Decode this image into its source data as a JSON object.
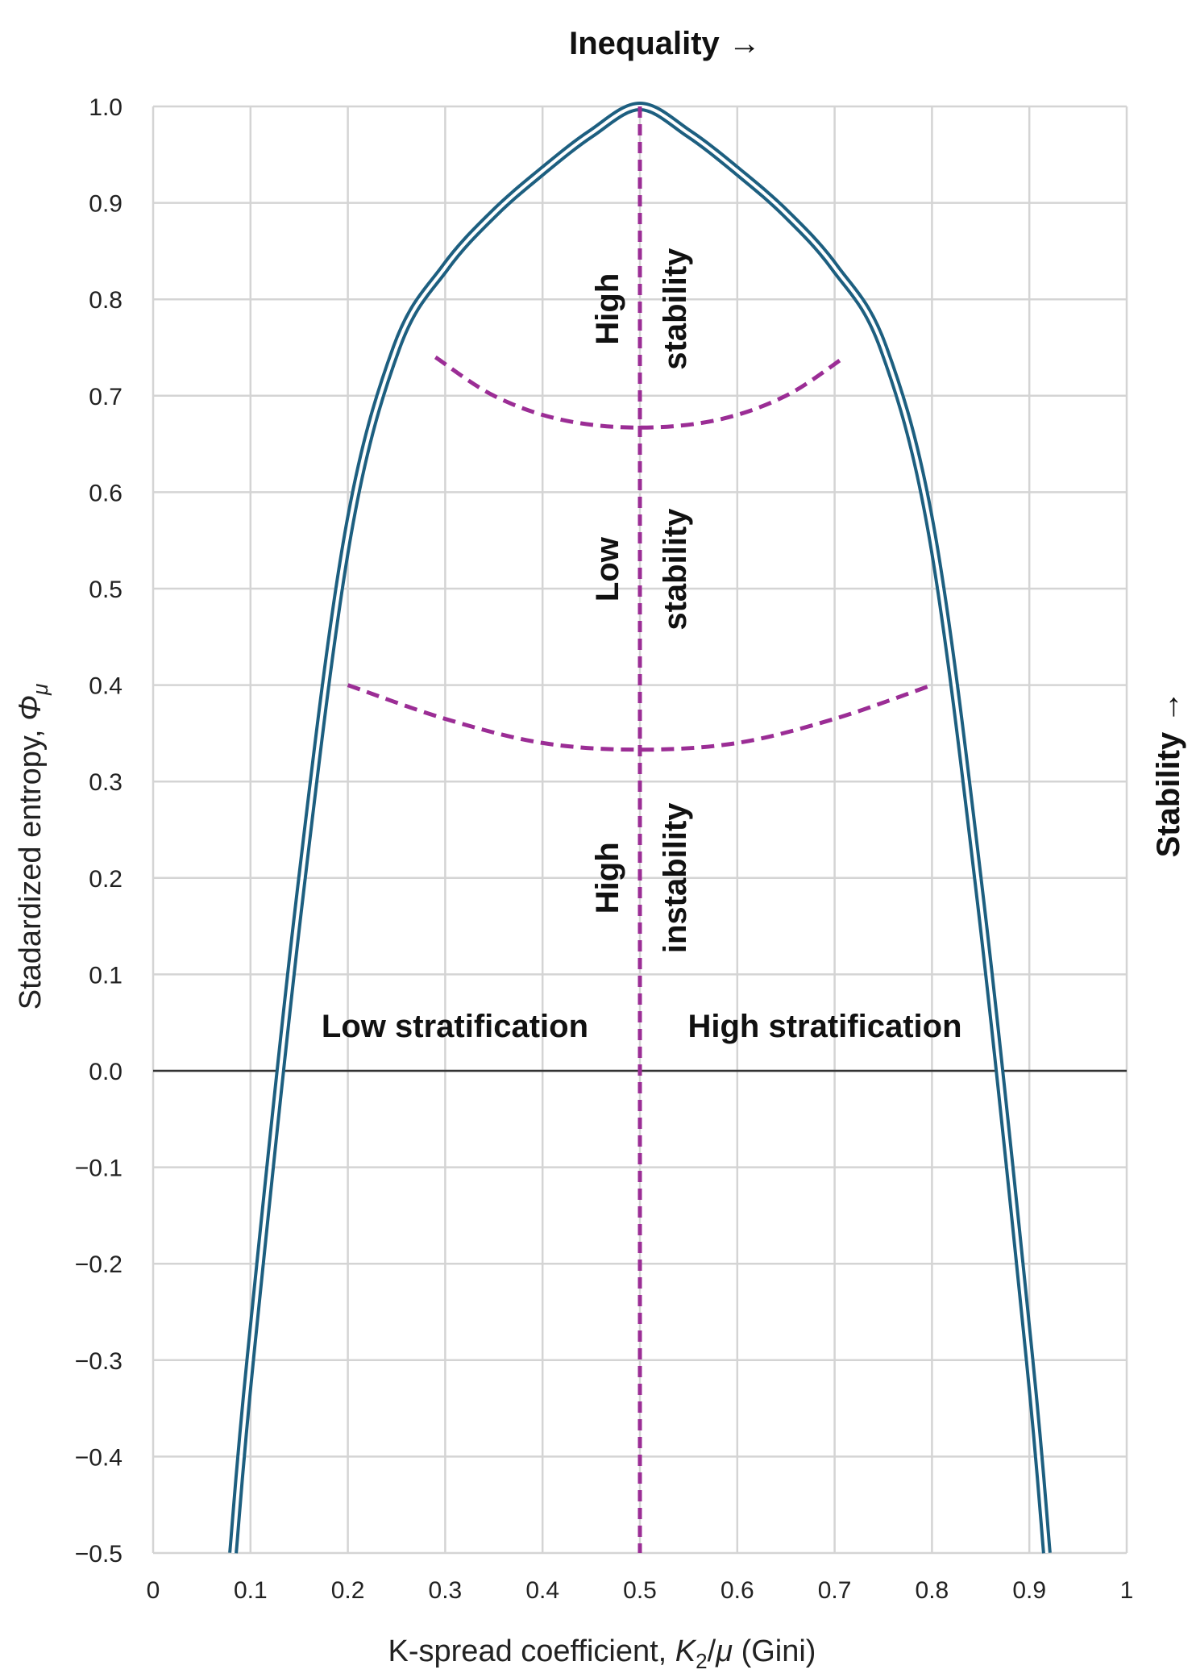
{
  "chart_data": {
    "type": "line",
    "title": "",
    "top_label": "Inequality →",
    "right_label": "Stability →",
    "xlabel": {
      "prefix": "K-spread coefficient, ",
      "var": "K",
      "sub": "2",
      "slash": "/",
      "mu": "μ",
      "suffix": " (Gini)"
    },
    "ylabel": {
      "prefix": "Stadardized entropy, ",
      "var": "Φ",
      "sub": "μ"
    },
    "xlim": [
      0,
      1
    ],
    "ylim": [
      -0.5,
      1.0
    ],
    "grid": true,
    "x_ticks": [
      "0",
      "0.1",
      "0.2",
      "0.3",
      "0.4",
      "0.5",
      "0.6",
      "0.7",
      "0.8",
      "0.9",
      "1"
    ],
    "x_tick_values": [
      0,
      0.1,
      0.2,
      0.3,
      0.4,
      0.5,
      0.6,
      0.7,
      0.8,
      0.9,
      1.0
    ],
    "y_ticks": [
      "1.0",
      "0.9",
      "0.8",
      "0.7",
      "0.6",
      "0.5",
      "0.4",
      "0.3",
      "0.2",
      "0.1",
      "0.0",
      "−0.1",
      "−0.2",
      "−0.3",
      "−0.4",
      "−0.5"
    ],
    "y_tick_values": [
      1.0,
      0.9,
      0.8,
      0.7,
      0.6,
      0.5,
      0.4,
      0.3,
      0.2,
      0.1,
      0.0,
      -0.1,
      -0.2,
      -0.3,
      -0.4,
      -0.5
    ],
    "colors": {
      "curve": "#1d5f80",
      "boundary": "#9b2d95",
      "grid": "#d4d4d4",
      "zero_line": "#333333"
    },
    "curve": {
      "style": "double-line",
      "x": [
        0.082,
        0.1,
        0.15,
        0.2,
        0.25,
        0.3,
        0.35,
        0.4,
        0.45,
        0.5,
        0.55,
        0.6,
        0.65,
        0.7,
        0.75,
        0.8,
        0.85,
        0.9,
        0.918
      ],
      "y": [
        -0.5,
        -0.297,
        0.175,
        0.556,
        0.75,
        0.833,
        0.889,
        0.933,
        0.972,
        1.0,
        0.972,
        0.933,
        0.889,
        0.833,
        0.75,
        0.556,
        0.175,
        -0.297,
        -0.5
      ]
    },
    "boundaries": [
      {
        "x": [
          0.2,
          0.3,
          0.4,
          0.5,
          0.6,
          0.7,
          0.8
        ],
        "y": [
          0.4,
          0.365,
          0.34,
          0.333,
          0.34,
          0.365,
          0.4
        ]
      },
      {
        "x": [
          0.29,
          0.35,
          0.42,
          0.5,
          0.58,
          0.65,
          0.71
        ],
        "y": [
          0.74,
          0.7,
          0.675,
          0.667,
          0.675,
          0.7,
          0.74
        ]
      }
    ],
    "midline_x": 0.5,
    "regions": [
      {
        "left": "High",
        "right": "stability",
        "y": 0.79
      },
      {
        "left": "Low",
        "right": "stability",
        "y": 0.52
      },
      {
        "left": "High",
        "right": "instability",
        "y": 0.2
      }
    ],
    "stratification_labels": [
      {
        "text": "Low stratification",
        "x": 0.31,
        "y": 0.035
      },
      {
        "text": "High stratification",
        "x": 0.69,
        "y": 0.035
      }
    ]
  }
}
